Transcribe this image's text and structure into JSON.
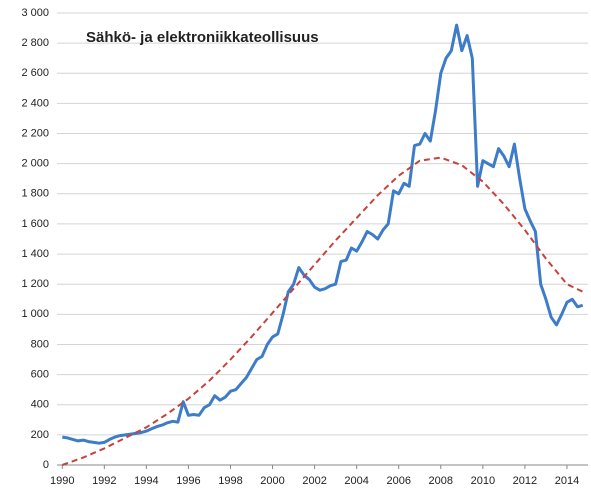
{
  "chart_data": {
    "type": "line",
    "title": "Sähkö- ja elektroniikkateollisuus",
    "xlim": [
      1989.75,
      2015
    ],
    "xticks": [
      1990,
      1992,
      1994,
      1996,
      1998,
      2000,
      2002,
      2004,
      2006,
      2008,
      2010,
      2012,
      2014
    ],
    "ylim": [
      0,
      3000
    ],
    "yticks": [
      0,
      200,
      400,
      600,
      800,
      {
        "value": 1000,
        "label": "1 000"
      },
      {
        "value": 1200,
        "label": "1 200"
      },
      {
        "value": 1400,
        "label": "1 400"
      },
      {
        "value": 1600,
        "label": "1 600"
      },
      {
        "value": 1800,
        "label": "1 800"
      },
      {
        "value": 2000,
        "label": "2 000"
      },
      {
        "value": 2200,
        "label": "2 200"
      },
      {
        "value": 2400,
        "label": "2 400"
      },
      {
        "value": 2600,
        "label": "2 600"
      },
      {
        "value": 2800,
        "label": "2 800"
      },
      {
        "value": 3000,
        "label": "3 000"
      }
    ],
    "grid": true,
    "series": [
      {
        "color": "#3d7cc9",
        "style": "solid",
        "x": [
          1990,
          1990.25,
          1990.5,
          1990.75,
          1991,
          1991.25,
          1991.5,
          1991.75,
          1992,
          1992.25,
          1992.5,
          1992.75,
          1993,
          1993.25,
          1993.5,
          1993.75,
          1994,
          1994.25,
          1994.5,
          1994.75,
          1995,
          1995.25,
          1995.5,
          1995.75,
          1996,
          1996.25,
          1996.5,
          1996.75,
          1997,
          1997.25,
          1997.5,
          1997.75,
          1998,
          1998.25,
          1998.5,
          1998.75,
          1999,
          1999.25,
          1999.5,
          1999.75,
          2000,
          2000.25,
          2000.5,
          2000.75,
          2001,
          2001.25,
          2001.5,
          2001.75,
          2002,
          2002.25,
          2002.5,
          2002.75,
          2003,
          2003.25,
          2003.5,
          2003.75,
          2004,
          2004.25,
          2004.5,
          2004.75,
          2005,
          2005.25,
          2005.5,
          2005.75,
          2006,
          2006.25,
          2006.5,
          2006.75,
          2007,
          2007.25,
          2007.5,
          2007.75,
          2008,
          2008.25,
          2008.5,
          2008.75,
          2009,
          2009.25,
          2009.5,
          2009.75,
          2010,
          2010.25,
          2010.5,
          2010.75,
          2011,
          2011.25,
          2011.5,
          2011.75,
          2012,
          2012.25,
          2012.5,
          2012.75,
          2013,
          2013.25,
          2013.5,
          2013.75,
          2014,
          2014.25,
          2014.5,
          2014.75
        ],
        "values": [
          185,
          180,
          170,
          160,
          165,
          155,
          150,
          145,
          150,
          170,
          185,
          195,
          200,
          205,
          210,
          215,
          225,
          240,
          255,
          265,
          280,
          290,
          285,
          420,
          330,
          335,
          330,
          380,
          400,
          460,
          430,
          450,
          490,
          500,
          540,
          580,
          640,
          700,
          720,
          800,
          850,
          870,
          1000,
          1150,
          1200,
          1310,
          1260,
          1230,
          1180,
          1160,
          1170,
          1190,
          1200,
          1350,
          1360,
          1440,
          1420,
          1480,
          1550,
          1530,
          1500,
          1560,
          1600,
          1820,
          1800,
          1870,
          1850,
          2120,
          2130,
          2200,
          2150,
          2350,
          2600,
          2700,
          2750,
          2920,
          2750,
          2850,
          2700,
          1850,
          2020,
          2000,
          1980,
          2100,
          2050,
          1980,
          2130,
          1900,
          1700,
          1620,
          1550,
          1200,
          1100,
          980,
          930,
          1000,
          1080,
          1100,
          1050,
          1060
        ]
      },
      {
        "color": "#c9413b",
        "style": "dashed",
        "x": [
          1990,
          1991,
          1992,
          1993,
          1994,
          1995,
          1996,
          1997,
          1998,
          1999,
          2000,
          2001,
          2002,
          2003,
          2004,
          2005,
          2006,
          2007,
          2008,
          2009,
          2010,
          2011,
          2012,
          2013,
          2014,
          2014.75
        ],
        "values": [
          0,
          50,
          110,
          180,
          250,
          340,
          440,
          560,
          700,
          850,
          1010,
          1170,
          1330,
          1490,
          1640,
          1790,
          1920,
          2020,
          2040,
          1990,
          1880,
          1730,
          1560,
          1370,
          1200,
          1150
        ]
      }
    ]
  }
}
